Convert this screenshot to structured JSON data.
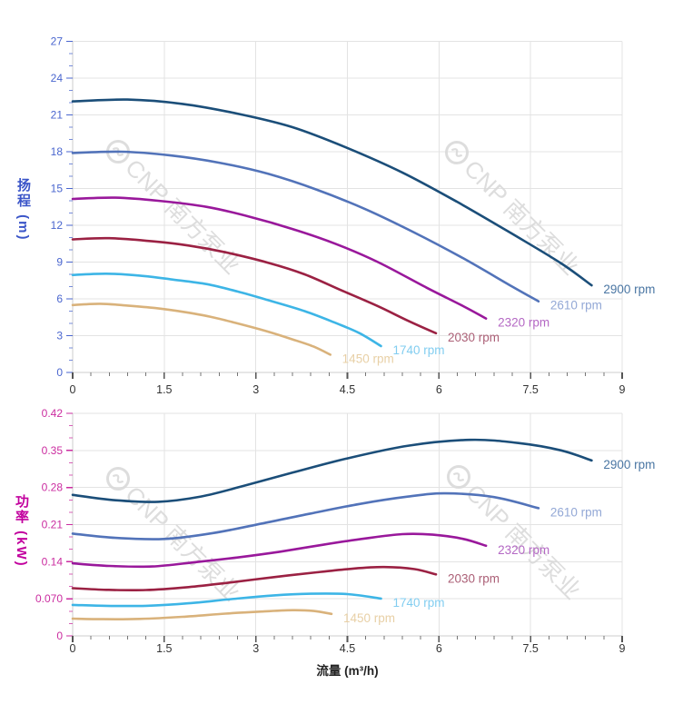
{
  "watermark": {
    "text": "CNP 南方泵业",
    "color": "#dadada"
  },
  "colors": {
    "grid": "#e3e3e3",
    "axis_line": "#cccccc",
    "x_tick": "#555555",
    "x_label": "#333333",
    "head_axis": "#4a66cf",
    "head_title": "#3b55c8",
    "power_axis": "#cb2da0",
    "power_title": "#c2009e"
  },
  "x_axis": {
    "title": "流量 (m³/h)",
    "min": 0,
    "max": 9,
    "tick_values": [
      0,
      1.5,
      3,
      4.5,
      6,
      7.5,
      9
    ],
    "tick_labels": [
      "0",
      "1.5",
      "3",
      "4.5",
      "6",
      "7.5",
      "9"
    ],
    "minor_step": 0.3
  },
  "chart_data": [
    {
      "type": "line",
      "title": "",
      "ylabel": "扬程 (m)",
      "xlabel": "流量 (m³/h)",
      "ylim": [
        0,
        27
      ],
      "xlim": [
        0,
        9
      ],
      "grid": true,
      "legend_position": "curve-end-labels",
      "y_axis": {
        "title": "扬程 (m)",
        "min": 0,
        "max": 27,
        "major_step": 3,
        "minor_step": 1,
        "tick_labels": [
          "0",
          "3",
          "6",
          "9",
          "12",
          "15",
          "18",
          "21",
          "24",
          "27"
        ]
      },
      "series": [
        {
          "name": "2900 rpm",
          "color": "#1b4e79",
          "label_color": "#4a76a3",
          "points": [
            [
              0,
              22.1
            ],
            [
              0.9,
              22.25
            ],
            [
              1.8,
              21.9
            ],
            [
              2.7,
              21.1
            ],
            [
              3.6,
              20.0
            ],
            [
              4.5,
              18.3
            ],
            [
              5.4,
              16.3
            ],
            [
              6.3,
              13.9
            ],
            [
              7.2,
              11.3
            ],
            [
              8.0,
              8.9
            ],
            [
              8.5,
              7.1
            ]
          ]
        },
        {
          "name": "2610 rpm",
          "color": "#5273b9",
          "label_color": "#93a8d6",
          "points": [
            [
              0,
              17.9
            ],
            [
              0.8,
              18.0
            ],
            [
              1.6,
              17.7
            ],
            [
              2.4,
              17.1
            ],
            [
              3.2,
              16.2
            ],
            [
              4.0,
              14.9
            ],
            [
              4.8,
              13.3
            ],
            [
              5.6,
              11.4
            ],
            [
              6.4,
              9.3
            ],
            [
              7.2,
              7.0
            ],
            [
              7.63,
              5.8
            ]
          ]
        },
        {
          "name": "2320 rpm",
          "color": "#99189b",
          "label_color": "#b468c4",
          "points": [
            [
              0,
              14.15
            ],
            [
              0.7,
              14.25
            ],
            [
              1.4,
              14.0
            ],
            [
              2.2,
              13.5
            ],
            [
              2.9,
              12.7
            ],
            [
              3.6,
              11.7
            ],
            [
              4.3,
              10.5
            ],
            [
              5.0,
              9.0
            ],
            [
              5.8,
              6.9
            ],
            [
              6.4,
              5.4
            ],
            [
              6.77,
              4.4
            ]
          ]
        },
        {
          "name": "2030 rpm",
          "color": "#9b2143",
          "label_color": "#ab5f76",
          "points": [
            [
              0,
              10.85
            ],
            [
              0.6,
              10.95
            ],
            [
              1.3,
              10.7
            ],
            [
              1.9,
              10.35
            ],
            [
              2.5,
              9.8
            ],
            [
              3.2,
              8.95
            ],
            [
              3.8,
              8.0
            ],
            [
              4.4,
              6.7
            ],
            [
              5.0,
              5.4
            ],
            [
              5.5,
              4.2
            ],
            [
              5.95,
              3.2
            ]
          ]
        },
        {
          "name": "1740 rpm",
          "color": "#3db5e6",
          "label_color": "#82cdf0",
          "points": [
            [
              0,
              7.95
            ],
            [
              0.55,
              8.05
            ],
            [
              1.1,
              7.9
            ],
            [
              1.6,
              7.6
            ],
            [
              2.2,
              7.2
            ],
            [
              2.7,
              6.6
            ],
            [
              3.2,
              5.9
            ],
            [
              3.8,
              5.0
            ],
            [
              4.3,
              4.05
            ],
            [
              4.7,
              3.2
            ],
            [
              5.05,
              2.15
            ]
          ]
        },
        {
          "name": "1450 rpm",
          "color": "#d9b27b",
          "label_color": "#e8d0a6",
          "points": [
            [
              0,
              5.5
            ],
            [
              0.45,
              5.6
            ],
            [
              0.9,
              5.45
            ],
            [
              1.35,
              5.25
            ],
            [
              1.8,
              4.95
            ],
            [
              2.25,
              4.55
            ],
            [
              2.7,
              4.0
            ],
            [
              3.15,
              3.4
            ],
            [
              3.6,
              2.7
            ],
            [
              3.95,
              2.1
            ],
            [
              4.22,
              1.45
            ]
          ]
        }
      ]
    },
    {
      "type": "line",
      "title": "",
      "ylabel": "功率 (kW)",
      "xlabel": "流量 (m³/h)",
      "ylim": [
        0,
        0.42
      ],
      "xlim": [
        0,
        9
      ],
      "grid": true,
      "legend_position": "curve-end-labels",
      "y_axis": {
        "title": "功率 (kW)",
        "min": 0,
        "max": 0.42,
        "major_step": 0.07,
        "minor_step": 0.0233333,
        "tick_labels": [
          "0",
          "0.070",
          "0.14",
          "0.21",
          "0.28",
          "0.35",
          "0.42"
        ]
      },
      "series": [
        {
          "name": "2900 rpm",
          "color": "#1b4e79",
          "label_color": "#4a76a3",
          "points": [
            [
              0,
              0.266
            ],
            [
              0.7,
              0.256
            ],
            [
              1.4,
              0.253
            ],
            [
              2.1,
              0.263
            ],
            [
              2.8,
              0.283
            ],
            [
              3.6,
              0.308
            ],
            [
              4.5,
              0.335
            ],
            [
              5.5,
              0.359
            ],
            [
              6.5,
              0.37
            ],
            [
              7.3,
              0.364
            ],
            [
              8.0,
              0.35
            ],
            [
              8.5,
              0.331
            ]
          ]
        },
        {
          "name": "2610 rpm",
          "color": "#5273b9",
          "label_color": "#93a8d6",
          "points": [
            [
              0,
              0.193
            ],
            [
              0.7,
              0.185
            ],
            [
              1.5,
              0.183
            ],
            [
              2.3,
              0.194
            ],
            [
              3.1,
              0.212
            ],
            [
              3.9,
              0.231
            ],
            [
              4.7,
              0.249
            ],
            [
              5.5,
              0.263
            ],
            [
              6.1,
              0.269
            ],
            [
              6.9,
              0.262
            ],
            [
              7.63,
              0.241
            ]
          ]
        },
        {
          "name": "2320 rpm",
          "color": "#99189b",
          "label_color": "#b468c4",
          "points": [
            [
              0,
              0.137
            ],
            [
              0.6,
              0.132
            ],
            [
              1.3,
              0.131
            ],
            [
              2.0,
              0.139
            ],
            [
              2.7,
              0.148
            ],
            [
              3.4,
              0.159
            ],
            [
              4.1,
              0.172
            ],
            [
              4.8,
              0.184
            ],
            [
              5.4,
              0.192
            ],
            [
              5.9,
              0.191
            ],
            [
              6.4,
              0.183
            ],
            [
              6.77,
              0.17
            ]
          ]
        },
        {
          "name": "2030 rpm",
          "color": "#9b2143",
          "label_color": "#ab5f76",
          "points": [
            [
              0,
              0.09
            ],
            [
              0.55,
              0.087
            ],
            [
              1.2,
              0.0865
            ],
            [
              1.9,
              0.092
            ],
            [
              2.6,
              0.101
            ],
            [
              3.3,
              0.111
            ],
            [
              4.0,
              0.12
            ],
            [
              4.6,
              0.127
            ],
            [
              5.1,
              0.13
            ],
            [
              5.6,
              0.126
            ],
            [
              5.95,
              0.116
            ]
          ]
        },
        {
          "name": "1740 rpm",
          "color": "#3db5e6",
          "label_color": "#82cdf0",
          "points": [
            [
              0,
              0.0585
            ],
            [
              0.55,
              0.0567
            ],
            [
              1.2,
              0.0568
            ],
            [
              1.9,
              0.0615
            ],
            [
              2.6,
              0.0695
            ],
            [
              3.3,
              0.0765
            ],
            [
              3.9,
              0.0795
            ],
            [
              4.5,
              0.0788
            ],
            [
              5.05,
              0.0705
            ]
          ]
        },
        {
          "name": "1450 rpm",
          "color": "#d9b27b",
          "label_color": "#e8d0a6",
          "points": [
            [
              0,
              0.0325
            ],
            [
              0.5,
              0.0315
            ],
            [
              1.1,
              0.032
            ],
            [
              1.8,
              0.036
            ],
            [
              2.5,
              0.042
            ],
            [
              3.1,
              0.046
            ],
            [
              3.6,
              0.0485
            ],
            [
              3.95,
              0.047
            ],
            [
              4.24,
              0.0415
            ]
          ]
        }
      ]
    }
  ]
}
